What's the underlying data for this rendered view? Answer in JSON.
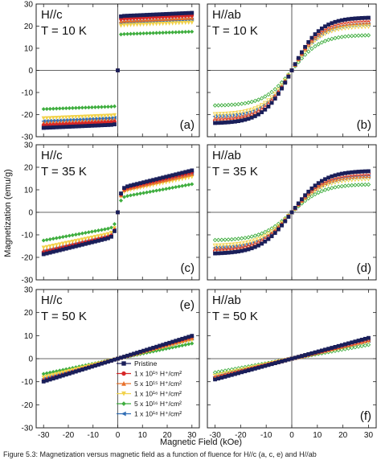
{
  "figure": {
    "y_axis_title": "Magnetization (emu/g)",
    "x_axis_title": "Magnetic Field (kOe)",
    "caption_fragment": "Figure 5.3: Magnetization versus magnetic field as a function of fluence for H//c (a, c, e) and H//ab"
  },
  "legend": {
    "entries": [
      {
        "text": "Pristine",
        "color": "#1a1f5a",
        "marker": "square"
      },
      {
        "text": "1 x 10¹⁵ H⁺/cm²",
        "color": "#d62728",
        "marker": "circle"
      },
      {
        "text": "5 x 10¹⁵ H⁺/cm²",
        "color": "#e8702a",
        "marker": "triangle-up"
      },
      {
        "text": "1 x 10¹⁶ H⁺/cm²",
        "color": "#f2d24b",
        "marker": "triangle-down"
      },
      {
        "text": "5 x 10¹⁶ H⁺/cm²",
        "color": "#3fae3f",
        "marker": "diamond"
      },
      {
        "text": "1 x 10¹⁸ H⁺/cm²",
        "color": "#2f6db5",
        "marker": "triangle-left"
      }
    ]
  },
  "chart_data": [
    {
      "type": "scatter",
      "panel": "(a)",
      "orientation": "H//c",
      "temperature": "T = 10 K",
      "xlim": [
        -33,
        33
      ],
      "ylim": [
        -30,
        30
      ],
      "xticks": [
        -30,
        -20,
        -10,
        0,
        10,
        20,
        30
      ],
      "yticks": [
        -30,
        -20,
        -10,
        0,
        10,
        20,
        30
      ],
      "series": [
        {
          "name": "Pristine",
          "color": "#1a1f5a",
          "shape": "step",
          "saturation": 24.5,
          "slope": 0.05,
          "width": 0.45,
          "filled": true
        },
        {
          "name": "1 x 10¹⁵ H⁺/cm²",
          "color": "#d62728",
          "shape": "step",
          "saturation": 23.3,
          "slope": 0.05,
          "width": 0.45,
          "filled": true
        },
        {
          "name": "5 x 10¹⁵ H⁺/cm²",
          "color": "#e8702a",
          "shape": "step",
          "saturation": 22.3,
          "slope": 0.05,
          "width": 0.45,
          "filled": true
        },
        {
          "name": "1 x 10¹⁶ H⁺/cm²",
          "color": "#f2d24b",
          "shape": "step",
          "saturation": 20.3,
          "slope": 0.045,
          "width": 0.45,
          "filled": true
        },
        {
          "name": "5 x 10¹⁶ H⁺/cm²",
          "color": "#3fae3f",
          "shape": "step",
          "saturation": 16.3,
          "slope": 0.04,
          "width": 0.45,
          "filled": true
        },
        {
          "name": "1 x 10¹⁸ H⁺/cm²",
          "color": "#2f6db5",
          "shape": "step",
          "saturation": 21.5,
          "slope": 0.05,
          "width": 0.45,
          "filled": true
        }
      ]
    },
    {
      "type": "scatter",
      "panel": "(b)",
      "orientation": "H//ab",
      "temperature": "T = 10 K",
      "xlim": [
        -33,
        33
      ],
      "ylim": [
        -30,
        30
      ],
      "xticks": [
        -30,
        -20,
        -10,
        0,
        10,
        20,
        30
      ],
      "yticks": [
        -30,
        -20,
        -10,
        0,
        10,
        20,
        30
      ],
      "series": [
        {
          "name": "Pristine",
          "color": "#1a1f5a",
          "shape": "tanh",
          "saturation": 24.0,
          "slope": 0,
          "width": 11,
          "filled": true
        },
        {
          "name": "1 x 10¹⁵ H⁺/cm²",
          "color": "#d62728",
          "shape": "tanh",
          "saturation": 23.0,
          "slope": 0,
          "width": 11,
          "filled": false
        },
        {
          "name": "5 x 10¹⁵ H⁺/cm²",
          "color": "#e8702a",
          "shape": "tanh",
          "saturation": 22.0,
          "slope": 0,
          "width": 11,
          "filled": false
        },
        {
          "name": "1 x 10¹⁶ H⁺/cm²",
          "color": "#f2d24b",
          "shape": "tanh",
          "saturation": 20.0,
          "slope": 0,
          "width": 11,
          "filled": false
        },
        {
          "name": "5 x 10¹⁶ H⁺/cm²",
          "color": "#3fae3f",
          "shape": "tanh",
          "saturation": 16.0,
          "slope": 0,
          "width": 11,
          "filled": false
        },
        {
          "name": "1 x 10¹⁸ H⁺/cm²",
          "color": "#2f6db5",
          "shape": "tanh",
          "saturation": 21.0,
          "slope": 0,
          "width": 11,
          "filled": false
        }
      ]
    },
    {
      "type": "scatter",
      "panel": "(c)",
      "orientation": "H//c",
      "temperature": "T = 35 K",
      "xlim": [
        -33,
        33
      ],
      "ylim": [
        -30,
        30
      ],
      "xticks": [
        -30,
        -20,
        -10,
        0,
        10,
        20,
        30
      ],
      "yticks": [
        -30,
        -20,
        -10,
        0,
        10,
        20,
        30
      ],
      "series": [
        {
          "name": "Pristine",
          "color": "#1a1f5a",
          "shape": "step",
          "saturation": 10.5,
          "slope": 0.27,
          "width": 1.3,
          "filled": true
        },
        {
          "name": "1 x 10¹⁵ H⁺/cm²",
          "color": "#d62728",
          "shape": "step",
          "saturation": 10.0,
          "slope": 0.26,
          "width": 1.3,
          "filled": true
        },
        {
          "name": "5 x 10¹⁵ H⁺/cm²",
          "color": "#e8702a",
          "shape": "step",
          "saturation": 9.5,
          "slope": 0.25,
          "width": 1.3,
          "filled": true
        },
        {
          "name": "1 x 10¹⁶ H⁺/cm²",
          "color": "#f2d24b",
          "shape": "step",
          "saturation": 8.8,
          "slope": 0.23,
          "width": 1.3,
          "filled": true
        },
        {
          "name": "5 x 10¹⁶ H⁺/cm²",
          "color": "#3fae3f",
          "shape": "step",
          "saturation": 6.5,
          "slope": 0.2,
          "width": 1.3,
          "filled": true
        },
        {
          "name": "1 x 10¹⁸ H⁺/cm²",
          "color": "#2f6db5",
          "shape": "step",
          "saturation": 9.8,
          "slope": 0.25,
          "width": 1.3,
          "filled": true
        }
      ]
    },
    {
      "type": "scatter",
      "panel": "(d)",
      "orientation": "H//ab",
      "temperature": "T = 35 K",
      "xlim": [
        -33,
        33
      ],
      "ylim": [
        -30,
        30
      ],
      "xticks": [
        -30,
        -20,
        -10,
        0,
        10,
        20,
        30
      ],
      "yticks": [
        -30,
        -20,
        -10,
        0,
        10,
        20,
        30
      ],
      "series": [
        {
          "name": "Pristine",
          "color": "#1a1f5a",
          "shape": "tanh",
          "saturation": 18.5,
          "slope": 0,
          "width": 12,
          "filled": true
        },
        {
          "name": "1 x 10¹⁵ H⁺/cm²",
          "color": "#d62728",
          "shape": "tanh",
          "saturation": 17.5,
          "slope": 0,
          "width": 12,
          "filled": false
        },
        {
          "name": "5 x 10¹⁵ H⁺/cm²",
          "color": "#e8702a",
          "shape": "tanh",
          "saturation": 16.5,
          "slope": 0,
          "width": 12,
          "filled": false
        },
        {
          "name": "1 x 10¹⁶ H⁺/cm²",
          "color": "#f2d24b",
          "shape": "tanh",
          "saturation": 15.0,
          "slope": 0,
          "width": 12,
          "filled": false
        },
        {
          "name": "5 x 10¹⁶ H⁺/cm²",
          "color": "#3fae3f",
          "shape": "tanh",
          "saturation": 12.5,
          "slope": 0,
          "width": 12,
          "filled": false
        },
        {
          "name": "1 x 10¹⁸ H⁺/cm²",
          "color": "#2f6db5",
          "shape": "tanh",
          "saturation": 16.0,
          "slope": 0,
          "width": 12,
          "filled": false
        }
      ]
    },
    {
      "type": "scatter",
      "panel": "(e)",
      "orientation": "H//c",
      "temperature": "T = 50 K",
      "xlim": [
        -33,
        33
      ],
      "ylim": [
        -30,
        30
      ],
      "xticks": [
        -30,
        -20,
        -10,
        0,
        10,
        20,
        30
      ],
      "yticks": [
        -30,
        -20,
        -10,
        0,
        10,
        20,
        30
      ],
      "series": [
        {
          "name": "Pristine",
          "color": "#1a1f5a",
          "shape": "linear",
          "saturation": 0,
          "slope": 0.33,
          "width": 1,
          "filled": true
        },
        {
          "name": "1 x 10¹⁵ H⁺/cm²",
          "color": "#d62728",
          "shape": "linear",
          "saturation": 0,
          "slope": 0.32,
          "width": 1,
          "filled": true
        },
        {
          "name": "5 x 10¹⁵ H⁺/cm²",
          "color": "#e8702a",
          "shape": "linear",
          "saturation": 0,
          "slope": 0.3,
          "width": 1,
          "filled": true
        },
        {
          "name": "1 x 10¹⁶ H⁺/cm²",
          "color": "#f2d24b",
          "shape": "linear",
          "saturation": 0,
          "slope": 0.27,
          "width": 1,
          "filled": true
        },
        {
          "name": "5 x 10¹⁶ H⁺/cm²",
          "color": "#3fae3f",
          "shape": "linear",
          "saturation": 0,
          "slope": 0.22,
          "width": 1,
          "filled": true
        },
        {
          "name": "1 x 10¹⁸ H⁺/cm²",
          "color": "#2f6db5",
          "shape": "linear",
          "saturation": 0,
          "slope": 0.29,
          "width": 1,
          "filled": true
        }
      ]
    },
    {
      "type": "scatter",
      "panel": "(f)",
      "orientation": "H//ab",
      "temperature": "T = 50 K",
      "xlim": [
        -33,
        33
      ],
      "ylim": [
        -30,
        30
      ],
      "xticks": [
        -30,
        -20,
        -10,
        0,
        10,
        20,
        30
      ],
      "yticks": [
        -30,
        -20,
        -10,
        0,
        10,
        20,
        30
      ],
      "series": [
        {
          "name": "Pristine",
          "color": "#1a1f5a",
          "shape": "linear",
          "saturation": 0,
          "slope": 0.3,
          "width": 1,
          "filled": true
        },
        {
          "name": "1 x 10¹⁵ H⁺/cm²",
          "color": "#d62728",
          "shape": "linear",
          "saturation": 0,
          "slope": 0.28,
          "width": 1,
          "filled": false
        },
        {
          "name": "5 x 10¹⁵ H⁺/cm²",
          "color": "#e8702a",
          "shape": "linear",
          "saturation": 0,
          "slope": 0.27,
          "width": 1,
          "filled": false
        },
        {
          "name": "1 x 10¹⁶ H⁺/cm²",
          "color": "#f2d24b",
          "shape": "linear",
          "saturation": 0,
          "slope": 0.25,
          "width": 1,
          "filled": false
        },
        {
          "name": "5 x 10¹⁶ H⁺/cm²",
          "color": "#3fae3f",
          "shape": "linear",
          "saturation": 0,
          "slope": 0.2,
          "width": 1,
          "filled": false
        },
        {
          "name": "1 x 10¹⁸ H⁺/cm²",
          "color": "#2f6db5",
          "shape": "linear",
          "saturation": 0,
          "slope": 0.26,
          "width": 1,
          "filled": false
        }
      ]
    }
  ]
}
